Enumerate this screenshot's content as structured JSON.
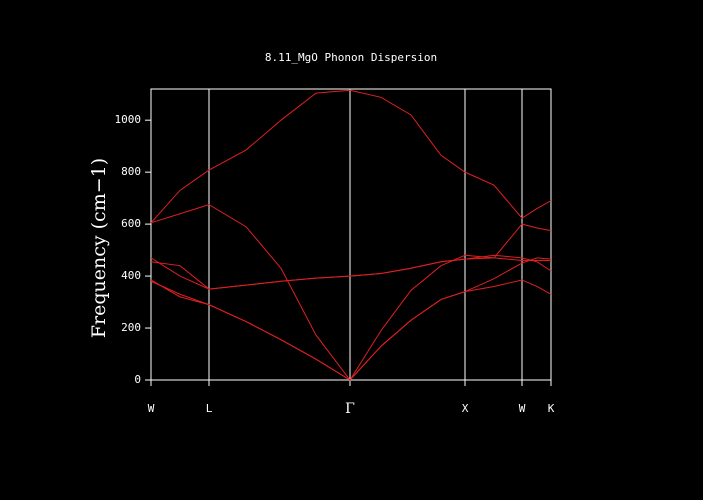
{
  "chart_data": {
    "type": "line",
    "title": "8.11_MgO Phonon Dispersion",
    "y_label": "Frequency (cm−1)",
    "x": [
      0,
      0.29,
      0.58,
      0.95,
      1.3,
      1.65,
      1.99,
      2.3,
      2.6,
      2.9,
      3.14,
      3.43,
      3.71,
      3.86,
      4.0
    ],
    "xlim": [
      0,
      4.0
    ],
    "xticks": [
      {
        "value": 0,
        "label": "W"
      },
      {
        "value": 0.58,
        "label": "L"
      },
      {
        "value": 1.99,
        "label": "Γ"
      },
      {
        "value": 3.14,
        "label": "X"
      },
      {
        "value": 3.71,
        "label": "W"
      },
      {
        "value": 4.0,
        "label": "K"
      }
    ],
    "ylim": [
      0,
      1120
    ],
    "yticks": [
      0,
      200,
      400,
      600,
      800,
      1000
    ],
    "grid": true,
    "series": [
      {
        "color": "#e02020",
        "values": [
          605,
          730,
          808,
          885,
          1000,
          1104,
          1115,
          1088,
          1020,
          865,
          800,
          750,
          623,
          660,
          690
        ]
      },
      {
        "color": "#e02020",
        "values": [
          605,
          640,
          675,
          590,
          430,
          173,
          0,
          190,
          345,
          440,
          480,
          470,
          460,
          460,
          460
        ]
      },
      {
        "color": "#e02020",
        "values": [
          470,
          400,
          350,
          365,
          380,
          392,
          400,
          410,
          430,
          455,
          465,
          470,
          600,
          585,
          575
        ]
      },
      {
        "color": "#e02020",
        "values": [
          455,
          440,
          350,
          365,
          380,
          392,
          400,
          410,
          430,
          455,
          465,
          480,
          470,
          455,
          420
        ]
      },
      {
        "color": "#e02020",
        "values": [
          385,
          320,
          290,
          225,
          155,
          80,
          0,
          130,
          230,
          310,
          340,
          360,
          385,
          360,
          330
        ]
      },
      {
        "color": "#e02020",
        "values": [
          380,
          330,
          290,
          225,
          155,
          80,
          0,
          130,
          230,
          310,
          340,
          390,
          450,
          470,
          465
        ]
      }
    ]
  }
}
